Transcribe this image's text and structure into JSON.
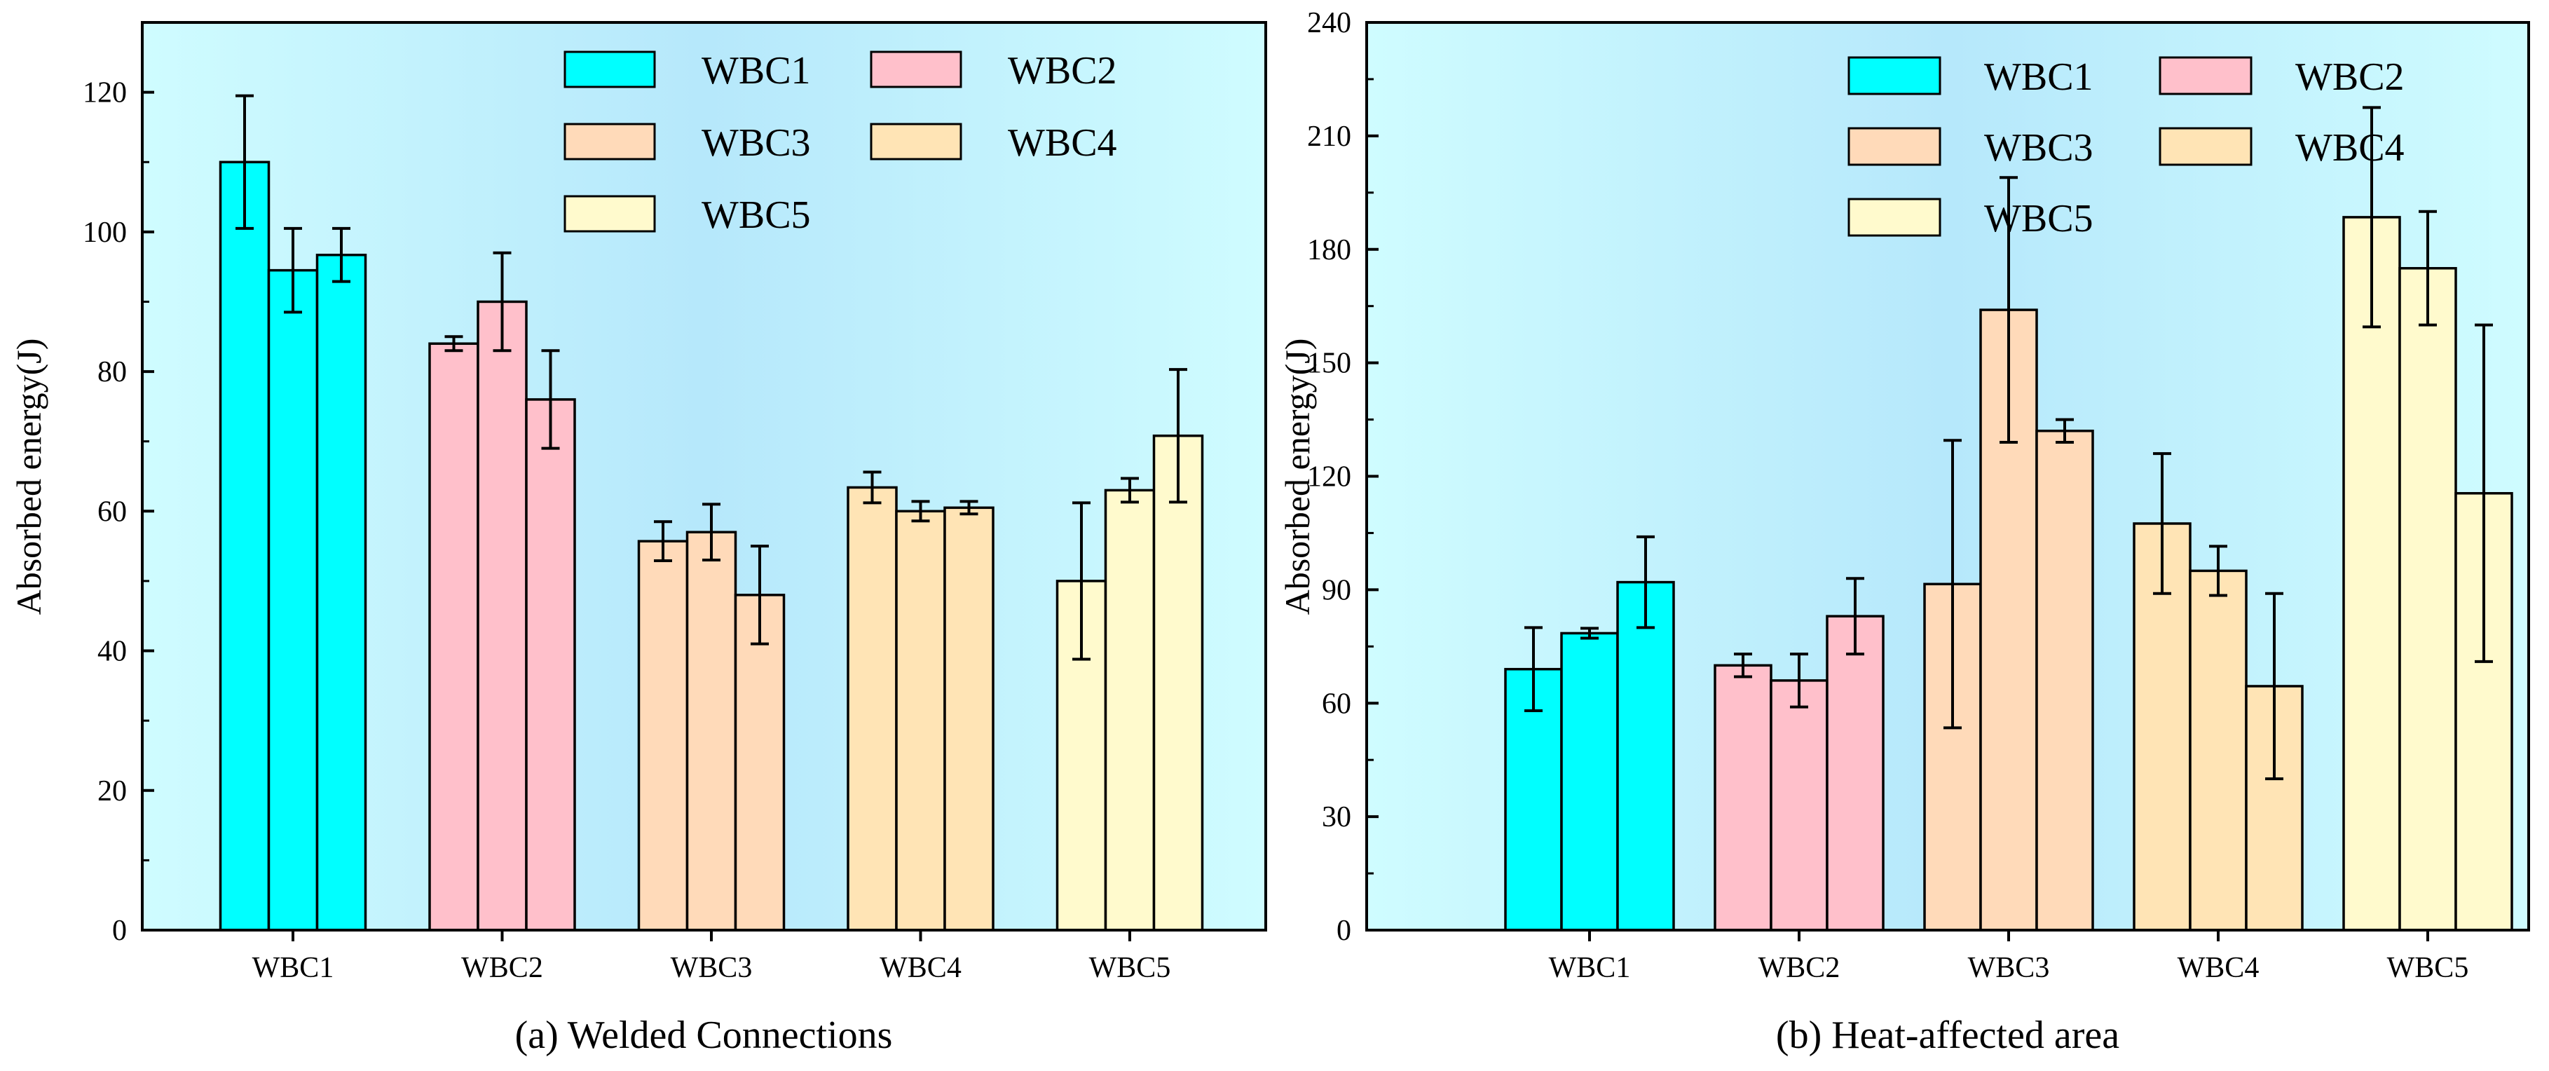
{
  "legend": [
    "WBC1",
    "WBC2",
    "WBC3",
    "WBC4",
    "WBC5"
  ],
  "colors": {
    "WBC1": "#00ffff",
    "WBC2": "#ffc0cb",
    "WBC3": "#ffdab9",
    "WBC4": "#ffe4b5",
    "WBC5": "#fffacd",
    "bg_edge": "#cffcff",
    "bg_center": "#b6e8fb"
  },
  "chart_data": [
    {
      "type": "bar",
      "caption": "(a) Welded Connections",
      "ylabel": "Absorbed energy(J)",
      "xlabel": "",
      "ylim": [
        0,
        130
      ],
      "yticks": [
        0,
        20,
        40,
        60,
        80,
        100,
        120
      ],
      "categories": [
        "WBC1",
        "WBC2",
        "WBC3",
        "WBC4",
        "WBC5"
      ],
      "groups": [
        {
          "category": "WBC1",
          "values": [
            110,
            94.5,
            96.7
          ],
          "errors": [
            9.5,
            6.0,
            3.8
          ]
        },
        {
          "category": "WBC2",
          "values": [
            84,
            90,
            76
          ],
          "errors": [
            1.0,
            7.0,
            7.0
          ]
        },
        {
          "category": "WBC3",
          "values": [
            55.7,
            57,
            48
          ],
          "errors": [
            2.8,
            4.0,
            7.0
          ]
        },
        {
          "category": "WBC4",
          "values": [
            63.4,
            60,
            60.5
          ],
          "errors": [
            2.2,
            1.4,
            0.9
          ]
        },
        {
          "category": "WBC5",
          "values": [
            50,
            63,
            70.8
          ],
          "errors": [
            11.2,
            1.7,
            9.5
          ]
        }
      ]
    },
    {
      "type": "bar",
      "caption": "(b) Heat-affected area",
      "ylabel": "Absorbed energy(J)",
      "xlabel": "",
      "ylim": [
        0,
        240
      ],
      "yticks": [
        0,
        30,
        60,
        90,
        120,
        150,
        180,
        210,
        240
      ],
      "categories": [
        "WBC1",
        "WBC2",
        "WBC3",
        "WBC4",
        "WBC5"
      ],
      "groups": [
        {
          "category": "WBC1",
          "values": [
            69,
            78.5,
            92
          ],
          "errors": [
            11,
            1.3,
            12
          ]
        },
        {
          "category": "WBC2",
          "values": [
            70,
            66,
            83
          ],
          "errors": [
            3,
            7,
            10
          ]
        },
        {
          "category": "WBC3",
          "values": [
            91.5,
            164,
            132
          ],
          "errors": [
            38,
            35,
            3
          ]
        },
        {
          "category": "WBC4",
          "values": [
            107.5,
            95,
            64.5
          ],
          "errors": [
            18.5,
            6.5,
            24.5
          ]
        },
        {
          "category": "WBC5",
          "values": [
            188.5,
            175,
            115.5
          ],
          "errors": [
            29,
            15,
            44.5
          ]
        }
      ]
    }
  ]
}
